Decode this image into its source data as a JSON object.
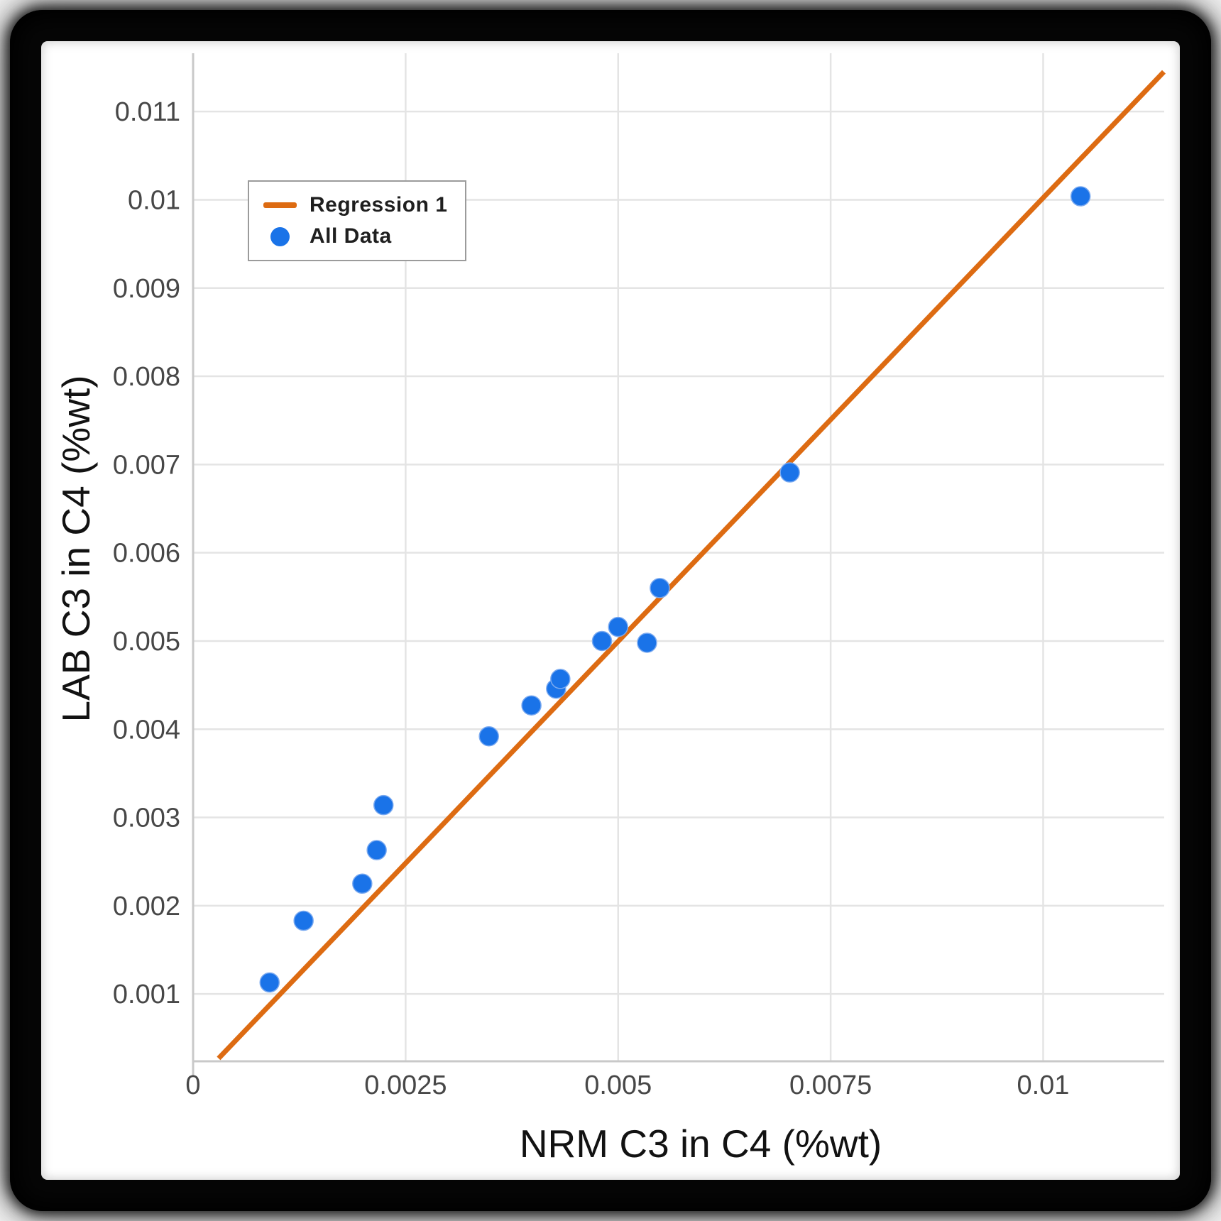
{
  "chart_data": {
    "type": "scatter",
    "xlabel": "NRM C3 in C4 (%wt)",
    "ylabel": "LAB C3 in C4 (%wt)",
    "xlim": [
      0,
      0.011424
    ],
    "ylim": [
      0.000237,
      0.011661
    ],
    "grid": true,
    "legend_position": "top-left-inside",
    "x_ticks": [
      0,
      0.0025,
      0.005,
      0.0075,
      0.01
    ],
    "x_tick_labels": [
      "0",
      "0.0025",
      "0.005",
      "0.0075",
      "0.01"
    ],
    "y_ticks": [
      0.001,
      0.002,
      0.003,
      0.004,
      0.005,
      0.006,
      0.007,
      0.008,
      0.009,
      0.01,
      0.011
    ],
    "y_tick_labels": [
      "0.001",
      "0.002",
      "0.003",
      "0.004",
      "0.005",
      "0.006",
      "0.007",
      "0.008",
      "0.009",
      "0.01",
      "0.011"
    ],
    "series": [
      {
        "name": "Regression 1",
        "type": "line",
        "color": "#dd6b12",
        "points": [
          [
            0.0003,
            0.00027
          ],
          [
            0.01142,
            0.01145
          ]
        ]
      },
      {
        "name": "All Data",
        "type": "scatter",
        "color": "#1a73e8",
        "points": [
          [
            0.0009,
            0.00113
          ],
          [
            0.0013,
            0.00183
          ],
          [
            0.00199,
            0.00225
          ],
          [
            0.00216,
            0.00263
          ],
          [
            0.00224,
            0.00314
          ],
          [
            0.00348,
            0.00392
          ],
          [
            0.00398,
            0.00427
          ],
          [
            0.00427,
            0.00446
          ],
          [
            0.00432,
            0.00457
          ],
          [
            0.00481,
            0.005
          ],
          [
            0.005,
            0.00516
          ],
          [
            0.00534,
            0.00498
          ],
          [
            0.00549,
            0.0056
          ],
          [
            0.00702,
            0.00691
          ],
          [
            0.01044,
            0.01004
          ]
        ]
      }
    ],
    "colors": {
      "gridline": "#e4e4e4",
      "axis_edge": "#c9c9c9",
      "tick_label": "#474747",
      "axis_title": "#121212",
      "legend_border": "#9b9b9b"
    }
  },
  "legend": {
    "items": [
      {
        "label": "Regression 1",
        "marker": "line",
        "color": "#dd6b12"
      },
      {
        "label": "All Data",
        "marker": "circle",
        "color": "#1a73e8"
      }
    ]
  }
}
